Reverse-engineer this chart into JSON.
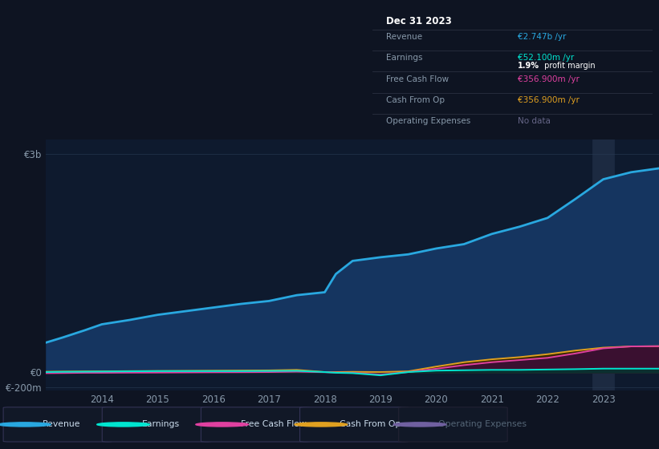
{
  "background_color": "#0e1422",
  "plot_bg_color": "#0e1a2e",
  "grid_color": "#1e2e44",
  "years": [
    2013.0,
    2013.3,
    2013.7,
    2014.0,
    2014.5,
    2015.0,
    2015.5,
    2016.0,
    2016.5,
    2017.0,
    2017.5,
    2018.0,
    2018.2,
    2018.5,
    2019.0,
    2019.5,
    2020.0,
    2020.5,
    2021.0,
    2021.5,
    2022.0,
    2022.5,
    2023.0,
    2023.5,
    2024.0
  ],
  "revenue": [
    410,
    480,
    580,
    660,
    720,
    790,
    840,
    890,
    940,
    980,
    1060,
    1100,
    1350,
    1530,
    1580,
    1620,
    1700,
    1760,
    1900,
    2000,
    2120,
    2380,
    2650,
    2747,
    2800
  ],
  "earnings": [
    5,
    8,
    10,
    12,
    15,
    18,
    18,
    18,
    18,
    20,
    22,
    5,
    -5,
    -10,
    -40,
    5,
    25,
    30,
    35,
    35,
    40,
    45,
    52,
    52,
    52
  ],
  "free_cash_flow": [
    -10,
    -8,
    -5,
    -5,
    -3,
    -2,
    0,
    2,
    3,
    5,
    10,
    3,
    -2,
    -5,
    -30,
    5,
    50,
    100,
    140,
    170,
    200,
    260,
    330,
    357,
    360
  ],
  "cash_from_op": [
    10,
    12,
    14,
    15,
    18,
    20,
    22,
    24,
    26,
    28,
    35,
    5,
    5,
    8,
    5,
    15,
    80,
    140,
    180,
    210,
    250,
    300,
    340,
    357,
    360
  ],
  "ylim_min": -250,
  "ylim_max": 3200,
  "xlim_min": 2013.0,
  "xlim_max": 2024.0,
  "y_ticks": [
    -200,
    0,
    3000
  ],
  "y_tick_labels": [
    "€-200m",
    "€0",
    "€3b"
  ],
  "x_tick_years": [
    2014,
    2015,
    2016,
    2017,
    2018,
    2019,
    2020,
    2021,
    2022,
    2023
  ],
  "revenue_line_color": "#29a8e0",
  "revenue_fill_color": "#153560",
  "earnings_line_color": "#00e5d0",
  "earnings_fill_color": "#0a3030",
  "fcf_line_color": "#e040a0",
  "fcf_fill_color": "#3a1030",
  "cashop_line_color": "#e0a020",
  "cashop_fill_color": "#3a2800",
  "highlight_x": 2023.0,
  "highlight_color": "#2a3a55",
  "legend_items": [
    {
      "label": "Revenue",
      "color": "#29a8e0",
      "dim": false
    },
    {
      "label": "Earnings",
      "color": "#00e5d0",
      "dim": false
    },
    {
      "label": "Free Cash Flow",
      "color": "#e040a0",
      "dim": false
    },
    {
      "label": "Cash From Op",
      "color": "#e0a020",
      "dim": false
    },
    {
      "label": "Operating Expenses",
      "color": "#7060a0",
      "dim": true
    }
  ],
  "info_box": {
    "title": "Dec 31 2023",
    "rows": [
      {
        "label": "Revenue",
        "value": "€2.747b /yr",
        "value_color": "#29a8e0",
        "sub": null
      },
      {
        "label": "Earnings",
        "value": "€52.100m /yr",
        "value_color": "#00e5d0",
        "sub": "1.9% profit margin"
      },
      {
        "label": "Free Cash Flow",
        "value": "€356.900m /yr",
        "value_color": "#e040a0",
        "sub": null
      },
      {
        "label": "Cash From Op",
        "value": "€356.900m /yr",
        "value_color": "#e0a020",
        "sub": null
      },
      {
        "label": "Operating Expenses",
        "value": "No data",
        "value_color": "#666688",
        "sub": null
      }
    ]
  }
}
